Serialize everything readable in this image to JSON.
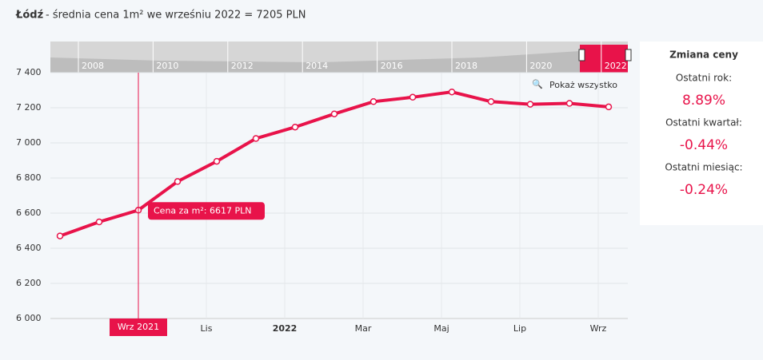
{
  "chart_data": {
    "type": "line",
    "title_bold": "Łódź",
    "title": "- średnia cena 1m² we wrześniu 2022 = 7205 PLN",
    "categories": [
      null,
      null,
      null,
      null,
      "Lis",
      null,
      "2022",
      null,
      "Mar",
      null,
      "Maj",
      null,
      "Lip",
      null,
      "Wrz"
    ],
    "series": [
      {
        "name": "Cena za m²:",
        "color": "#e8134a",
        "values": [
          6470,
          6550,
          6617,
          6780,
          6895,
          7025,
          7090,
          7165,
          7235,
          7260,
          7290,
          7235,
          7220,
          7225,
          7205
        ]
      }
    ],
    "unit": "PLN",
    "crosshair_index": 2,
    "crosshair_label": "Wrz 2021",
    "ylim": [
      6000,
      7400
    ],
    "yticks": [
      {
        "value": 6000,
        "label": "6 000"
      },
      {
        "value": 6200,
        "label": "6 200"
      },
      {
        "value": 6400,
        "label": "6 400"
      },
      {
        "value": 6600,
        "label": "6 600"
      },
      {
        "value": 6800,
        "label": "6 800"
      },
      {
        "value": 7000,
        "label": "7 000"
      },
      {
        "value": 7200,
        "label": "7 200"
      },
      {
        "value": 7400,
        "label": "7 400"
      }
    ],
    "grid": true,
    "navigator_labels": [
      "2008",
      "2010",
      "2012",
      "2014",
      "2016",
      "2018",
      "2020",
      "2022"
    ],
    "reset_button": "Pokaż wszystko",
    "side_panel": {
      "title": "Zmiana ceny",
      "items": [
        {
          "label": "Ostatni rok:",
          "value": "8.89%"
        },
        {
          "label": "Ostatni kwartał:",
          "value": "-0.44%"
        },
        {
          "label": "Ostatni miesiąc:",
          "value": "-0.24%"
        }
      ]
    }
  }
}
